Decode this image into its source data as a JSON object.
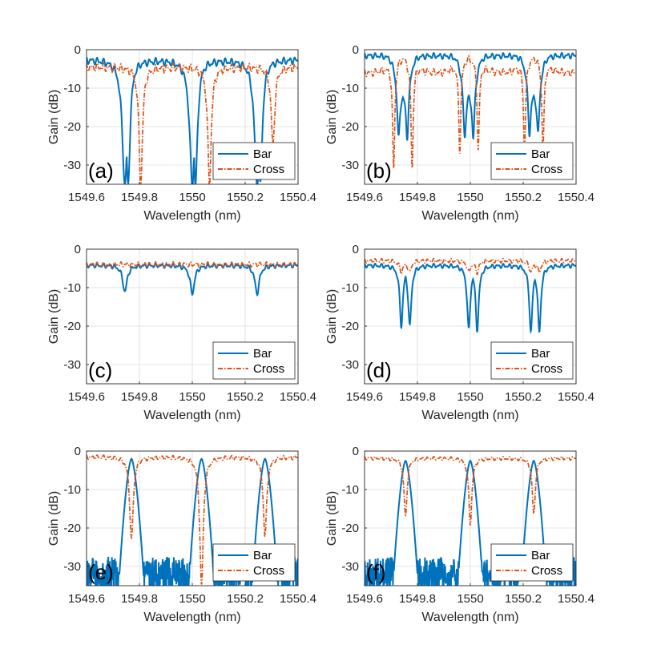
{
  "colors": {
    "bar": "#0072BD",
    "cross": "#D95319"
  },
  "chart_data": [
    {
      "type": "line",
      "label": "(a)",
      "xlabel": "Wavelength (nm)",
      "ylabel": "Gain (dB)",
      "xlim": [
        1549.6,
        1550.4
      ],
      "ylim": [
        -35,
        0
      ],
      "xticks": [
        1549.6,
        1549.8,
        1550,
        1550.2,
        1550.4
      ],
      "xticklabels": [
        "1549.6",
        "1549.8",
        "1550",
        "1550.2",
        "1550.4"
      ],
      "yticks": [
        0,
        -10,
        -20,
        -30
      ],
      "yticklabels": [
        "0",
        "-10",
        "-20",
        "-30"
      ],
      "legend": [
        "Bar",
        "Cross"
      ],
      "series": [
        {
          "name": "Bar",
          "profile": "notch-deep",
          "base": -2.5,
          "ripple": 1.0,
          "centers": [
            1549.745,
            1550.0,
            1550.245
          ],
          "depths": [
            -35,
            -35,
            -35
          ],
          "width": 0.012,
          "split": 0.03
        },
        {
          "name": "Cross",
          "profile": "notch-deep",
          "base": -4.5,
          "ripple": 1.2,
          "centers": [
            1549.805,
            1550.065,
            1550.305
          ],
          "depths": [
            -35,
            -35,
            -25
          ],
          "width": 0.008,
          "split": 0
        }
      ]
    },
    {
      "type": "line",
      "label": "(b)",
      "xlabel": "Wavelength (nm)",
      "ylabel": "Gain (dB)",
      "xlim": [
        1549.6,
        1550.4
      ],
      "ylim": [
        -35,
        0
      ],
      "xticks": [
        1549.6,
        1549.8,
        1550,
        1550.2,
        1550.4
      ],
      "xticklabels": [
        "1549.6",
        "1549.8",
        "1550",
        "1550.2",
        "1550.4"
      ],
      "yticks": [
        0,
        -10,
        -20,
        -30
      ],
      "yticklabels": [
        "0",
        "-10",
        "-20",
        "-30"
      ],
      "legend": [
        "Bar",
        "Cross"
      ],
      "series": [
        {
          "name": "Bar",
          "profile": "double-notch",
          "base": -1.5,
          "ripple": 0.8,
          "centers": [
            1549.745,
            1549.995,
            1550.24
          ],
          "depths": [
            -23,
            -23,
            -22
          ],
          "width": 0.006,
          "split": 0.032,
          "mid": -11
        },
        {
          "name": "Cross",
          "profile": "double-notch",
          "base": -6.0,
          "ripple": 1.0,
          "centers": [
            1549.745,
            1549.995,
            1550.24
          ],
          "depths": [
            -31,
            -26,
            -26
          ],
          "width": 0.005,
          "split": 0.07,
          "mid": -2
        }
      ]
    },
    {
      "type": "line",
      "label": "(c)",
      "xlabel": "Wavelength (nm)",
      "ylabel": "Gain (dB)",
      "xlim": [
        1549.6,
        1550.4
      ],
      "ylim": [
        -35,
        0
      ],
      "xticks": [
        1549.6,
        1549.8,
        1550,
        1550.2,
        1550.4
      ],
      "xticklabels": [
        "1549.6",
        "1549.8",
        "1550",
        "1550.2",
        "1550.4"
      ],
      "yticks": [
        0,
        -10,
        -20,
        -30
      ],
      "yticklabels": [
        "0",
        "-10",
        "-20",
        "-30"
      ],
      "legend": [
        "Bar",
        "Cross"
      ],
      "series": [
        {
          "name": "Bar",
          "profile": "notch",
          "base": -4.2,
          "ripple": 0.6,
          "centers": [
            1549.745,
            1550.0,
            1550.245
          ],
          "depths": [
            -11,
            -11.5,
            -11.5
          ],
          "width": 0.01,
          "split": 0
        },
        {
          "name": "Cross",
          "profile": "flat",
          "base": -4.0,
          "ripple": 0.7,
          "centers": [],
          "depths": [],
          "width": 0.01,
          "split": 0
        }
      ]
    },
    {
      "type": "line",
      "label": "(d)",
      "xlabel": "Wavelength (nm)",
      "ylabel": "Gain (dB)",
      "xlim": [
        1549.6,
        1550.4
      ],
      "ylim": [
        -35,
        0
      ],
      "xticks": [
        1549.6,
        1549.8,
        1550,
        1550.2,
        1550.4
      ],
      "xticklabels": [
        "1549.6",
        "1549.8",
        "1550",
        "1550.2",
        "1550.4"
      ],
      "yticks": [
        0,
        -10,
        -20,
        -30
      ],
      "yticklabels": [
        "0",
        "-10",
        "-20",
        "-30"
      ],
      "legend": [
        "Bar",
        "Cross"
      ],
      "series": [
        {
          "name": "Bar",
          "profile": "double-notch",
          "base": -4.2,
          "ripple": 0.6,
          "centers": [
            1549.755,
            1550.01,
            1550.245
          ],
          "depths": [
            -20,
            -21,
            -21.5
          ],
          "width": 0.007,
          "split": 0.032,
          "mid": -5
        },
        {
          "name": "Cross",
          "profile": "double-notch",
          "base": -3.0,
          "ripple": 0.6,
          "centers": [
            1549.755,
            1550.01,
            1550.245
          ],
          "depths": [
            -6,
            -6,
            -6
          ],
          "width": 0.006,
          "split": 0.032,
          "mid": -4
        }
      ]
    },
    {
      "type": "line",
      "label": "(e)",
      "xlabel": "Wavelength (nm)",
      "ylabel": "Gain (dB)",
      "xlim": [
        1549.6,
        1550.4
      ],
      "ylim": [
        -35,
        0
      ],
      "xticks": [
        1549.6,
        1549.8,
        1550,
        1550.2,
        1550.4
      ],
      "xticklabels": [
        "1549.6",
        "1549.8",
        "1550",
        "1550.2",
        "1550.4"
      ],
      "yticks": [
        0,
        -10,
        -20,
        -30
      ],
      "yticklabels": [
        "0",
        "-10",
        "-20",
        "-30"
      ],
      "legend": [
        "Bar",
        "Cross"
      ],
      "series": [
        {
          "name": "Bar",
          "profile": "passband",
          "base": -32,
          "ripple": 2.5,
          "centers": [
            1549.77,
            1550.035,
            1550.275
          ],
          "depths": [
            -2,
            -2,
            -2
          ],
          "width": 0.045,
          "split": 0
        },
        {
          "name": "Cross",
          "profile": "notch-deep",
          "base": -1.5,
          "ripple": 0.6,
          "centers": [
            1549.77,
            1550.035,
            1550.275
          ],
          "depths": [
            -23,
            -35,
            -22
          ],
          "width": 0.008,
          "split": 0
        }
      ]
    },
    {
      "type": "line",
      "label": "(f)",
      "xlabel": "Wavelength (nm)",
      "ylabel": "Gain (dB)",
      "xlim": [
        1549.6,
        1550.4
      ],
      "ylim": [
        -35,
        0
      ],
      "xticks": [
        1549.6,
        1549.8,
        1550,
        1550.2,
        1550.4
      ],
      "xticklabels": [
        "1549.6",
        "1549.8",
        "1550",
        "1550.2",
        "1550.4"
      ],
      "yticks": [
        0,
        -10,
        -20,
        -30
      ],
      "yticklabels": [
        "0",
        "-10",
        "-20",
        "-30"
      ],
      "legend": [
        "Bar",
        "Cross"
      ],
      "series": [
        {
          "name": "Bar",
          "profile": "passband",
          "base": -32,
          "ripple": 2.5,
          "centers": [
            1549.755,
            1550.0,
            1550.24
          ],
          "depths": [
            -2.5,
            -2.5,
            -2.5
          ],
          "width": 0.045,
          "split": 0
        },
        {
          "name": "Cross",
          "profile": "notch-deep",
          "base": -1.8,
          "ripple": 0.5,
          "centers": [
            1549.755,
            1550.0,
            1550.24
          ],
          "depths": [
            -17,
            -19,
            -16.5
          ],
          "width": 0.007,
          "split": 0
        }
      ]
    }
  ]
}
